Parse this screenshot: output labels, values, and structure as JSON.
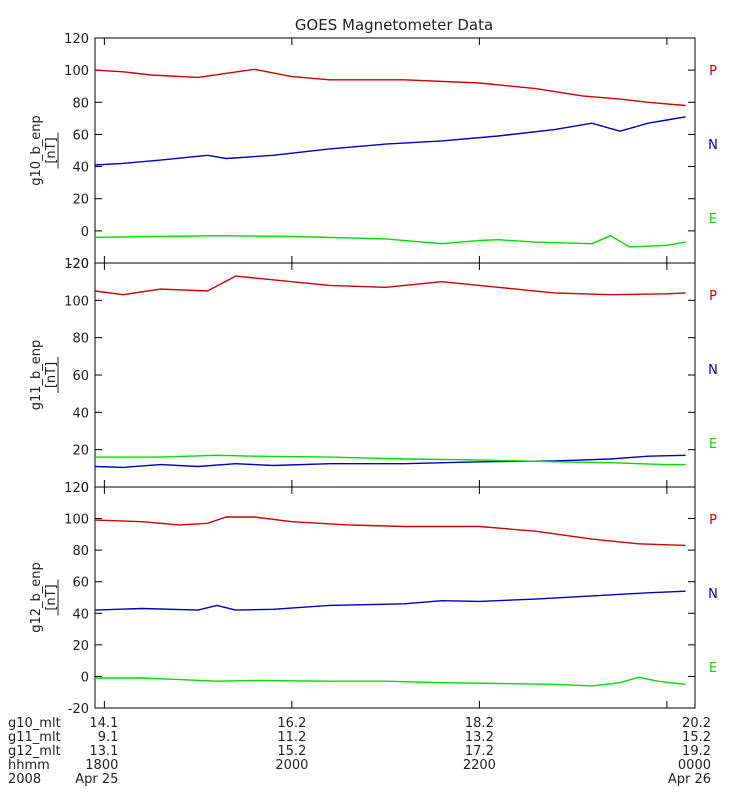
{
  "chart_data": {
    "title": "GOES Magnetometer Data",
    "type": "line",
    "x_tick_positions": [
      0,
      1,
      2,
      3
    ],
    "x_range": [
      -0.05,
      3.15
    ],
    "x_label_rows": [
      {
        "name": "g10_mlt",
        "values": [
          "14.1",
          "16.2",
          "18.2",
          "20.2"
        ]
      },
      {
        "name": "g11_mlt",
        "values": [
          "9.1",
          "11.2",
          "13.2",
          "15.2"
        ]
      },
      {
        "name": "g12_mlt",
        "values": [
          "13.1",
          "15.2",
          "17.2",
          "19.2"
        ]
      },
      {
        "name": "hhmm",
        "values": [
          "1800",
          "2000",
          "2200",
          "0000"
        ]
      },
      {
        "name": "2008",
        "values": [
          "Apr 25",
          "",
          "",
          "Apr 26"
        ]
      }
    ],
    "panels": [
      {
        "ylabel": "g10_b_enp",
        "unit": "[nT]",
        "ylim": [
          -20,
          120
        ],
        "yticks": [
          -20,
          0,
          20,
          40,
          60,
          80,
          100,
          120
        ],
        "series": [
          {
            "name": "P",
            "color": "#cc0000",
            "points": [
              [
                -0.05,
                100
              ],
              [
                0.1,
                99
              ],
              [
                0.25,
                97
              ],
              [
                0.5,
                95.5
              ],
              [
                0.8,
                100.5
              ],
              [
                1.0,
                96
              ],
              [
                1.2,
                94
              ],
              [
                1.6,
                94
              ],
              [
                2.0,
                92
              ],
              [
                2.3,
                88.5
              ],
              [
                2.55,
                84
              ],
              [
                2.75,
                82
              ],
              [
                2.9,
                80
              ],
              [
                3.0,
                79
              ],
              [
                3.1,
                78
              ]
            ]
          },
          {
            "name": "N",
            "color": "#0000bb",
            "points": [
              [
                -0.05,
                41
              ],
              [
                0.1,
                42
              ],
              [
                0.3,
                44
              ],
              [
                0.55,
                47
              ],
              [
                0.65,
                45
              ],
              [
                0.9,
                47
              ],
              [
                1.2,
                51
              ],
              [
                1.5,
                54
              ],
              [
                1.8,
                56
              ],
              [
                2.1,
                59
              ],
              [
                2.4,
                63
              ],
              [
                2.6,
                67
              ],
              [
                2.75,
                62
              ],
              [
                2.9,
                67
              ],
              [
                3.0,
                69
              ],
              [
                3.1,
                71
              ]
            ]
          },
          {
            "name": "E",
            "color": "#00dd00",
            "points": [
              [
                -0.05,
                -4
              ],
              [
                0.3,
                -3.5
              ],
              [
                0.6,
                -3
              ],
              [
                1.0,
                -3.5
              ],
              [
                1.5,
                -5
              ],
              [
                1.8,
                -8
              ],
              [
                2.0,
                -6
              ],
              [
                2.1,
                -5.5
              ],
              [
                2.3,
                -7
              ],
              [
                2.6,
                -8
              ],
              [
                2.7,
                -3
              ],
              [
                2.8,
                -10
              ],
              [
                3.0,
                -9
              ],
              [
                3.1,
                -7
              ]
            ]
          }
        ],
        "legend": [
          "P",
          "N",
          "E"
        ]
      },
      {
        "ylabel": "g11_b_enp",
        "unit": "[nT]",
        "ylim": [
          0,
          120
        ],
        "yticks": [
          0,
          20,
          40,
          60,
          80,
          100,
          120
        ],
        "series": [
          {
            "name": "P",
            "color": "#cc0000",
            "points": [
              [
                -0.05,
                105
              ],
              [
                0.1,
                103
              ],
              [
                0.3,
                106
              ],
              [
                0.55,
                105
              ],
              [
                0.7,
                113
              ],
              [
                0.9,
                111
              ],
              [
                1.2,
                108
              ],
              [
                1.5,
                107
              ],
              [
                1.8,
                110
              ],
              [
                2.1,
                107
              ],
              [
                2.4,
                104
              ],
              [
                2.7,
                103
              ],
              [
                3.0,
                103.5
              ],
              [
                3.1,
                104
              ]
            ]
          },
          {
            "name": "N",
            "color": "#0000bb",
            "points": [
              [
                -0.05,
                11
              ],
              [
                0.1,
                10.5
              ],
              [
                0.3,
                12
              ],
              [
                0.5,
                11
              ],
              [
                0.7,
                12.5
              ],
              [
                0.9,
                11.5
              ],
              [
                1.2,
                12.5
              ],
              [
                1.6,
                12.5
              ],
              [
                2.0,
                13.5
              ],
              [
                2.4,
                14
              ],
              [
                2.7,
                15
              ],
              [
                2.9,
                16.5
              ],
              [
                3.1,
                17
              ]
            ]
          },
          {
            "name": "E",
            "color": "#00dd00",
            "points": [
              [
                -0.05,
                16
              ],
              [
                0.3,
                16
              ],
              [
                0.6,
                17
              ],
              [
                0.8,
                16.5
              ],
              [
                1.2,
                16
              ],
              [
                1.6,
                15
              ],
              [
                2.0,
                14.5
              ],
              [
                2.4,
                13.5
              ],
              [
                2.7,
                13
              ],
              [
                3.0,
                12
              ],
              [
                3.1,
                12
              ]
            ]
          }
        ],
        "legend": [
          "P",
          "N",
          "E"
        ]
      },
      {
        "ylabel": "g12_b_enp",
        "unit": "[nT]",
        "ylim": [
          -20,
          120
        ],
        "yticks": [
          -20,
          0,
          20,
          40,
          60,
          80,
          100,
          120
        ],
        "series": [
          {
            "name": "P",
            "color": "#cc0000",
            "points": [
              [
                -0.05,
                99
              ],
              [
                0.2,
                98
              ],
              [
                0.4,
                96
              ],
              [
                0.55,
                97
              ],
              [
                0.65,
                101
              ],
              [
                0.8,
                101
              ],
              [
                1.0,
                98
              ],
              [
                1.3,
                96
              ],
              [
                1.6,
                95
              ],
              [
                2.0,
                95
              ],
              [
                2.3,
                92
              ],
              [
                2.6,
                87
              ],
              [
                2.85,
                84
              ],
              [
                3.1,
                83
              ]
            ]
          },
          {
            "name": "N",
            "color": "#0000bb",
            "points": [
              [
                -0.05,
                42
              ],
              [
                0.2,
                43
              ],
              [
                0.5,
                42
              ],
              [
                0.6,
                45
              ],
              [
                0.7,
                42
              ],
              [
                0.9,
                42.5
              ],
              [
                1.2,
                45
              ],
              [
                1.6,
                46
              ],
              [
                1.8,
                48
              ],
              [
                2.0,
                47.5
              ],
              [
                2.3,
                49
              ],
              [
                2.6,
                51
              ],
              [
                2.9,
                53
              ],
              [
                3.1,
                54
              ]
            ]
          },
          {
            "name": "E",
            "color": "#00dd00",
            "points": [
              [
                -0.05,
                -1
              ],
              [
                0.2,
                -1
              ],
              [
                0.4,
                -2
              ],
              [
                0.6,
                -3
              ],
              [
                0.8,
                -2.5
              ],
              [
                1.2,
                -3
              ],
              [
                1.5,
                -3
              ],
              [
                1.8,
                -4
              ],
              [
                2.1,
                -4.5
              ],
              [
                2.4,
                -5
              ],
              [
                2.6,
                -6
              ],
              [
                2.75,
                -4
              ],
              [
                2.85,
                -0.5
              ],
              [
                2.95,
                -3
              ],
              [
                3.1,
                -5
              ]
            ]
          }
        ],
        "legend": [
          "P",
          "N",
          "E"
        ]
      }
    ]
  }
}
